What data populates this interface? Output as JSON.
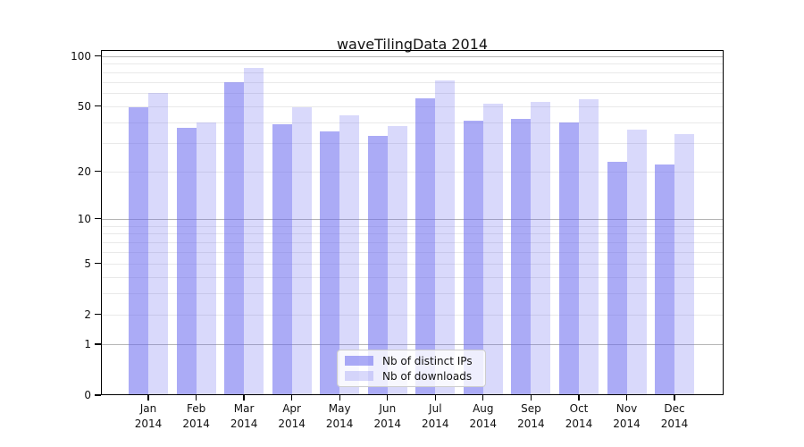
{
  "figure": {
    "title": "waveTilingData 2014"
  },
  "chart_data": {
    "type": "bar",
    "title": "waveTilingData 2014",
    "categories": [
      "Jan",
      "Feb",
      "Mar",
      "Apr",
      "May",
      "Jun",
      "Jul",
      "Aug",
      "Sep",
      "Oct",
      "Nov",
      "Dec"
    ],
    "x_year_label": "2014",
    "series": [
      {
        "name": "Nb of distinct IPs",
        "color": "rgba(102,102,238,0.55)",
        "values": [
          49,
          37,
          70,
          39,
          35,
          33,
          56,
          41,
          42,
          40,
          23,
          22
        ]
      },
      {
        "name": "Nb of downloads",
        "color": "rgba(102,102,238,0.25)",
        "values": [
          60,
          40,
          85,
          49,
          44,
          38,
          71,
          52,
          53,
          55,
          36,
          34
        ]
      }
    ],
    "yscale": "log1p",
    "yticks": [
      0,
      1,
      2,
      5,
      10,
      20,
      50,
      100
    ],
    "ylim": [
      0,
      107
    ],
    "grid": true,
    "legend_position": "lower center"
  },
  "colors": {
    "bar_base": "#6666ee",
    "grid_major": "#b5b5b5",
    "grid_minor": "#e9e9e9",
    "spine": "#000000",
    "text": "#111111",
    "legend_border": "#cccccc",
    "legend_bg": "rgba(255,255,255,0.8)"
  }
}
